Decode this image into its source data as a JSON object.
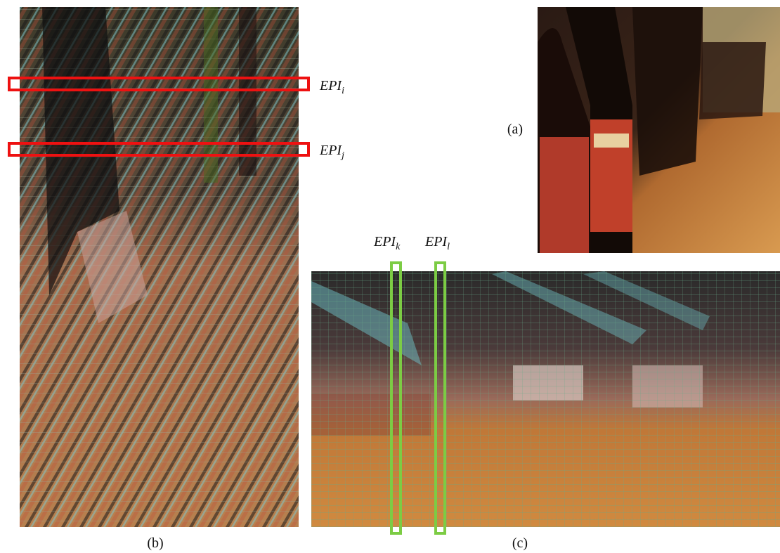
{
  "panels": [
    {
      "label": "(a)"
    },
    {
      "label": "(b)"
    },
    {
      "label": "(c)"
    }
  ],
  "epi_labels": [
    {
      "base": "EPI",
      "sub": "i"
    },
    {
      "base": "EPI",
      "sub": "j"
    },
    {
      "base": "EPI",
      "sub": "k"
    },
    {
      "base": "EPI",
      "sub": "l"
    }
  ]
}
